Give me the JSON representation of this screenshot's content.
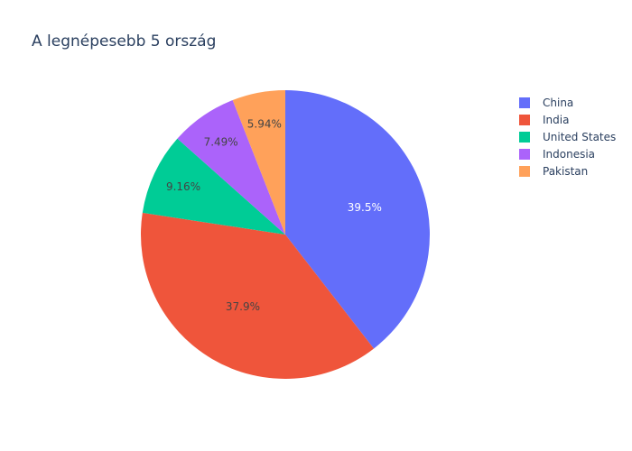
{
  "chart_data": {
    "type": "pie",
    "title": "A legnépesebb 5 ország",
    "labels": [
      "China",
      "India",
      "United States",
      "Indonesia",
      "Pakistan"
    ],
    "percent_labels": [
      "39.5%",
      "37.9%",
      "9.16%",
      "7.49%",
      "5.94%"
    ],
    "values": [
      39.5,
      37.9,
      9.16,
      7.49,
      5.94
    ],
    "colors": [
      "#636efa",
      "#EF553B",
      "#00cc96",
      "#ab63fa",
      "#FFA15A"
    ],
    "direction": "clockwise",
    "start": "12 o'clock",
    "legend_position": "top-right"
  }
}
